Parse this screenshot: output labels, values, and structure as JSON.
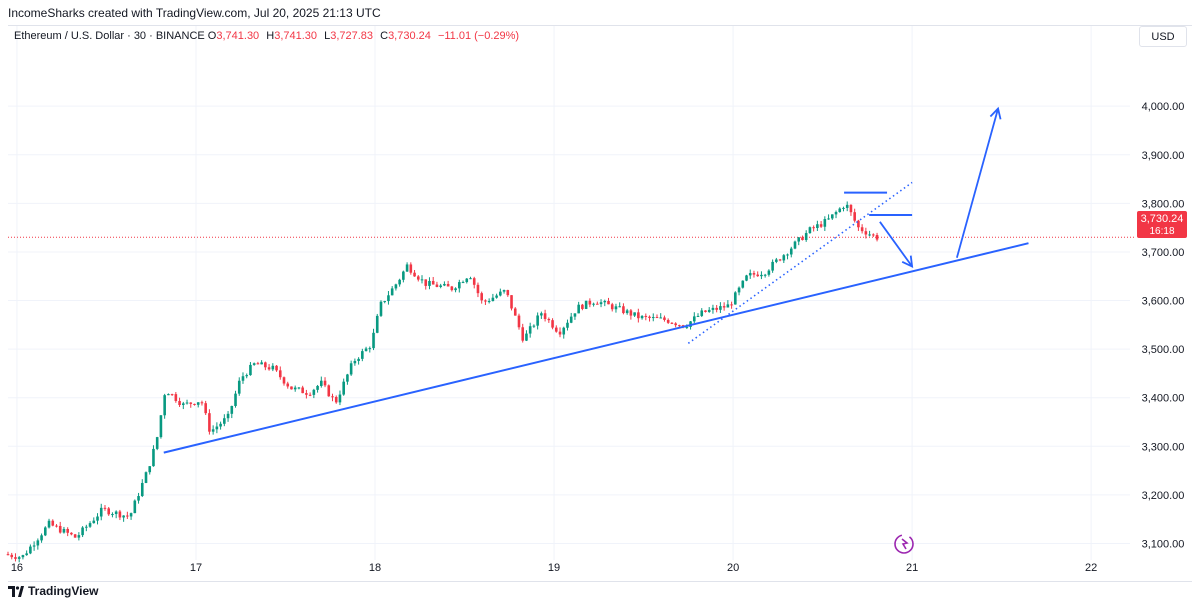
{
  "header": {
    "attribution": "IncomeSharks created with TradingView.com, Jul 20, 2025 21:13 UTC"
  },
  "legend": {
    "symbol": "Ethereum / U.S. Dollar · 30 · BINANCE",
    "open_label": "O",
    "open": "3,741.30",
    "high_label": "H",
    "high": "3,741.30",
    "low_label": "L",
    "low": "3,727.83",
    "close_label": "C",
    "close": "3,730.24",
    "change": "−11.01 (−0.29%)"
  },
  "currency_button": "USD",
  "price_tag": {
    "price": "3,730.24",
    "countdown": "16:18",
    "color": "#f23645"
  },
  "footer": {
    "brand": "TradingView"
  },
  "colors": {
    "up": "#089981",
    "down": "#f23645",
    "drawing": "#2962ff",
    "grid": "#f0f3fa"
  },
  "chart_data": {
    "type": "candlestick",
    "y_axis_labels": [
      "4,000.00",
      "3,900.00",
      "3,800.00",
      "3,700.00",
      "3,600.00",
      "3,500.00",
      "3,400.00",
      "3,300.00",
      "3,200.00",
      "3,100.00"
    ],
    "y_axis_values": [
      4000,
      3900,
      3800,
      3700,
      3600,
      3500,
      3400,
      3300,
      3200,
      3100
    ],
    "x_axis_labels": [
      "16",
      "17",
      "18",
      "19",
      "20",
      "21",
      "22"
    ],
    "x_axis_values": [
      16,
      17,
      18,
      19,
      20,
      21,
      22
    ],
    "x_range": [
      15.95,
      22.15
    ],
    "y_range": [
      3066,
      4165
    ],
    "price_path": [
      [
        15.95,
        3078
      ],
      [
        16.05,
        3072
      ],
      [
        16.2,
        3140
      ],
      [
        16.35,
        3112
      ],
      [
        16.5,
        3170
      ],
      [
        16.65,
        3155
      ],
      [
        16.75,
        3250
      ],
      [
        16.8,
        3310
      ],
      [
        16.85,
        3418
      ],
      [
        16.95,
        3385
      ],
      [
        17.05,
        3395
      ],
      [
        17.1,
        3330
      ],
      [
        17.2,
        3360
      ],
      [
        17.27,
        3440
      ],
      [
        17.35,
        3470
      ],
      [
        17.45,
        3460
      ],
      [
        17.55,
        3420
      ],
      [
        17.65,
        3410
      ],
      [
        17.72,
        3430
      ],
      [
        17.8,
        3390
      ],
      [
        17.9,
        3475
      ],
      [
        18.0,
        3510
      ],
      [
        18.05,
        3590
      ],
      [
        18.15,
        3640
      ],
      [
        18.2,
        3672
      ],
      [
        18.3,
        3635
      ],
      [
        18.45,
        3625
      ],
      [
        18.55,
        3655
      ],
      [
        18.62,
        3595
      ],
      [
        18.75,
        3620
      ],
      [
        18.85,
        3520
      ],
      [
        18.95,
        3575
      ],
      [
        19.05,
        3535
      ],
      [
        19.15,
        3585
      ],
      [
        19.25,
        3600
      ],
      [
        19.4,
        3580
      ],
      [
        19.5,
        3565
      ],
      [
        19.65,
        3560
      ],
      [
        19.75,
        3548
      ],
      [
        19.85,
        3575
      ],
      [
        20.0,
        3590
      ],
      [
        20.1,
        3650
      ],
      [
        20.2,
        3660
      ],
      [
        20.32,
        3700
      ],
      [
        20.45,
        3745
      ],
      [
        20.55,
        3765
      ],
      [
        20.65,
        3800
      ],
      [
        20.72,
        3750
      ],
      [
        20.82,
        3730
      ]
    ],
    "annotations": [
      {
        "type": "trendline",
        "from": [
          16.82,
          3287
        ],
        "to": [
          21.65,
          3718
        ]
      },
      {
        "type": "dotted_line",
        "from": [
          19.75,
          3512
        ],
        "to": [
          21.0,
          3843
        ]
      },
      {
        "type": "horizontal_segment",
        "from": [
          20.62,
          3822
        ],
        "to": [
          20.86,
          3822
        ]
      },
      {
        "type": "horizontal_segment",
        "from": [
          20.76,
          3776
        ],
        "to": [
          21.0,
          3776
        ]
      },
      {
        "type": "arrow",
        "from": [
          20.82,
          3762
        ],
        "to": [
          21.0,
          3670
        ]
      },
      {
        "type": "arrow",
        "from": [
          21.25,
          3688
        ],
        "to": [
          21.48,
          3995
        ]
      }
    ]
  }
}
